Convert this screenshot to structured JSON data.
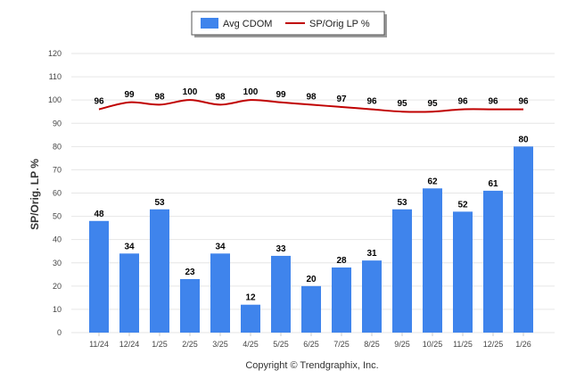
{
  "chart_data": {
    "type": "bar",
    "title": "",
    "xlabel": "",
    "ylabel": "SP/Orig. LP %",
    "ylim": [
      0,
      120
    ],
    "yticks": [
      0,
      10,
      20,
      30,
      40,
      50,
      60,
      70,
      80,
      90,
      100,
      110,
      120
    ],
    "grid": true,
    "legend_position": "top-center",
    "categories": [
      "11/24",
      "12/24",
      "1/25",
      "2/25",
      "3/25",
      "4/25",
      "5/25",
      "6/25",
      "7/25",
      "8/25",
      "9/25",
      "10/25",
      "11/25",
      "12/25",
      "1/26"
    ],
    "series": [
      {
        "name": "Avg CDOM",
        "type": "bar",
        "color": "#3f84ec",
        "values": [
          48,
          34,
          53,
          23,
          34,
          12,
          33,
          20,
          28,
          31,
          53,
          62,
          52,
          61,
          80
        ]
      },
      {
        "name": "SP/Orig LP %",
        "type": "line",
        "color": "#c00000",
        "values": [
          96,
          99,
          98,
          100,
          98,
          100,
          99,
          98,
          97,
          96,
          95,
          95,
          96,
          96,
          96
        ]
      }
    ]
  },
  "footer": {
    "copyright": "Copyright © Trendgraphix, Inc."
  }
}
